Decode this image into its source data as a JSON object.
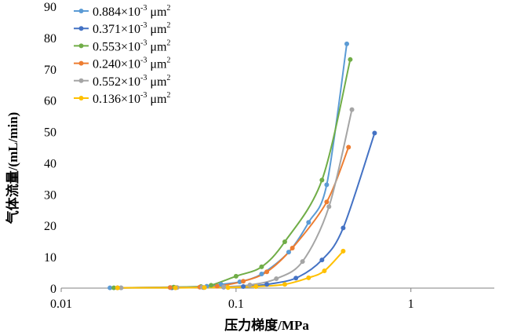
{
  "chart_data": {
    "type": "line",
    "xlabel": "压力梯度/MPa",
    "ylabel": "气体流量/(mL/min)",
    "x_scale": "log",
    "xlim": [
      0.01,
      3
    ],
    "ylim": [
      0,
      90
    ],
    "x_ticks": [
      0.01,
      0.1,
      1
    ],
    "x_tick_labels": [
      "0.01",
      "0.1",
      "1"
    ],
    "y_ticks": [
      0,
      10,
      20,
      30,
      40,
      50,
      60,
      70,
      80,
      90
    ],
    "y_tick_labels": [
      "0",
      "10",
      "20",
      "30",
      "40",
      "50",
      "60",
      "70",
      "80",
      "90"
    ],
    "grid": false,
    "legend_position": "top-left",
    "series": [
      {
        "name_main": "0.884×10",
        "name_sup": "-3",
        "name_unit": " μm",
        "name_unit_sup": "2",
        "color": "#5b9bd5",
        "x": [
          0.019,
          0.022,
          0.042,
          0.045,
          0.068,
          0.082,
          0.105,
          0.14,
          0.2,
          0.26,
          0.33,
          0.43
        ],
        "y": [
          0.1,
          0.1,
          0.2,
          0.2,
          0.6,
          1.2,
          2.0,
          4.5,
          11.5,
          21,
          33,
          78
        ]
      },
      {
        "name_main": "0.371×10",
        "name_sup": "-3",
        "name_unit": " μm",
        "name_unit_sup": "2",
        "color": "#4472c4",
        "x": [
          0.021,
          0.043,
          0.065,
          0.085,
          0.11,
          0.15,
          0.22,
          0.31,
          0.41,
          0.62
        ],
        "y": [
          0.1,
          0.1,
          0.2,
          0.3,
          0.5,
          1.2,
          3.2,
          9.0,
          19.2,
          49.5
        ]
      },
      {
        "name_main": "0.553×10",
        "name_sup": "-3",
        "name_unit": " μm",
        "name_unit_sup": "2",
        "color": "#70ad47",
        "x": [
          0.02,
          0.044,
          0.063,
          0.072,
          0.1,
          0.14,
          0.19,
          0.31,
          0.45
        ],
        "y": [
          0.1,
          0.3,
          0.5,
          0.9,
          3.8,
          6.8,
          14.8,
          34.5,
          73
        ]
      },
      {
        "name_main": "0.240×10",
        "name_sup": "-3",
        "name_unit": " μm",
        "name_unit_sup": "2",
        "color": "#ed7d31",
        "x": [
          0.021,
          0.042,
          0.062,
          0.078,
          0.11,
          0.15,
          0.21,
          0.33,
          0.44
        ],
        "y": [
          0.1,
          0.2,
          0.3,
          0.6,
          2.2,
          5.2,
          12.8,
          27.5,
          45
        ]
      },
      {
        "name_main": "0.552×10",
        "name_sup": "-3",
        "name_unit": " μm",
        "name_unit_sup": "2",
        "color": "#a5a5a5",
        "x": [
          0.022,
          0.046,
          0.064,
          0.085,
          0.12,
          0.17,
          0.24,
          0.34,
          0.46
        ],
        "y": [
          0.1,
          0.2,
          0.3,
          0.4,
          1.0,
          3.0,
          8.5,
          26,
          57
        ]
      },
      {
        "name_main": "0.136×10",
        "name_sup": "-3",
        "name_unit": " μm",
        "name_unit_sup": "2",
        "color": "#ffc000",
        "x": [
          0.021,
          0.045,
          0.066,
          0.09,
          0.13,
          0.19,
          0.26,
          0.32,
          0.41
        ],
        "y": [
          0.1,
          0.1,
          0.2,
          0.2,
          0.5,
          1.2,
          3.3,
          5.5,
          11.8
        ]
      }
    ]
  }
}
